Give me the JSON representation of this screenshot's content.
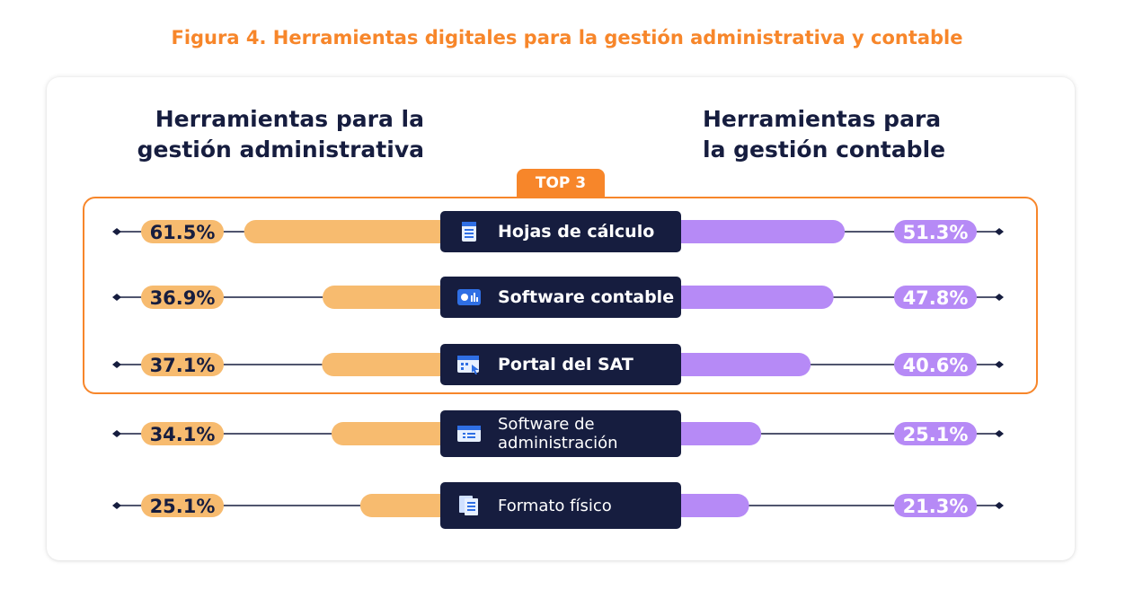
{
  "figure_title": "Figura 4. Herramientas digitales para la gestión administrativa y contable",
  "left_heading": [
    "Herramientas para la",
    "gestión administrativa"
  ],
  "right_heading": [
    "Herramientas para",
    "la gestión contable"
  ],
  "top_badge": "TOP 3",
  "colors": {
    "orange": "#f7862a",
    "admin_bar": "#f7bb6f",
    "contable_bar": "#b68af6",
    "navy": "#161d3f"
  },
  "chart_data": {
    "type": "bar",
    "categories": [
      "Hojas de cálculo",
      "Software contable",
      "Portal del SAT",
      "Software de administración",
      "Formato físico"
    ],
    "series": [
      {
        "name": "Herramientas para la gestión administrativa",
        "values": [
          61.5,
          36.9,
          37.1,
          34.1,
          25.1
        ]
      },
      {
        "name": "Herramientas para la gestión contable",
        "values": [
          51.3,
          47.8,
          40.6,
          25.1,
          21.3
        ]
      }
    ],
    "value_labels_left": [
      "61.5%",
      "36.9%",
      "37.1%",
      "34.1%",
      "25.1%"
    ],
    "value_labels_right": [
      "51.3%",
      "47.8%",
      "40.6%",
      "25.1%",
      "21.3%"
    ],
    "highlighted_top": 3,
    "icons": [
      "spreadsheet-icon",
      "accounting-software-icon",
      "web-portal-icon",
      "admin-software-icon",
      "paper-documents-icon"
    ]
  }
}
